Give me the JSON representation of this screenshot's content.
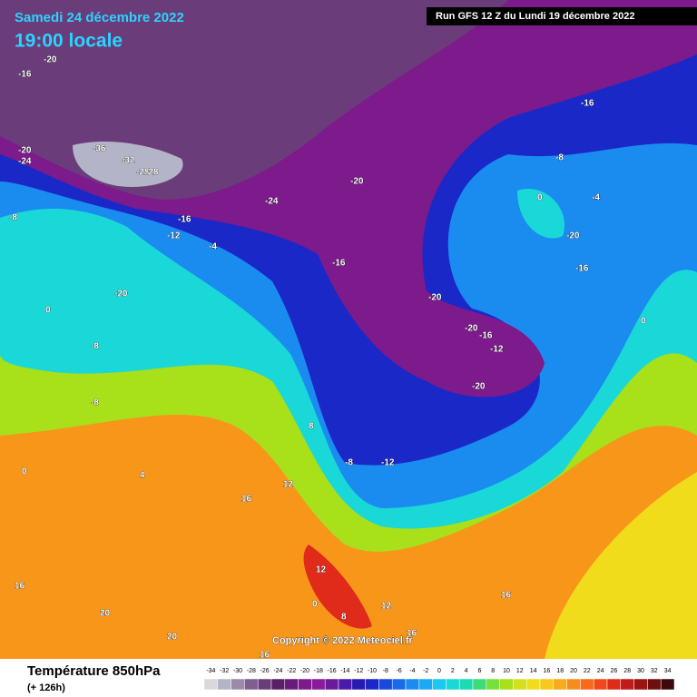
{
  "header": {
    "date": "Samedi 24 décembre 2022",
    "time": "19:00 locale",
    "run": "Run GFS 12 Z du Lundi 19 décembre 2022"
  },
  "copyright": "Copyright © 2022 Meteociel.fr",
  "footer": {
    "title": "Température 850hPa",
    "lead": "(+ 126h)"
  },
  "legend": {
    "labels": [
      -34,
      -32,
      -30,
      -28,
      -26,
      -24,
      -22,
      -20,
      -18,
      -16,
      -14,
      -12,
      -10,
      -8,
      -6,
      -4,
      -2,
      0,
      2,
      4,
      6,
      8,
      10,
      12,
      14,
      16,
      18,
      20,
      22,
      24,
      26,
      28,
      30,
      32,
      34
    ],
    "colors": [
      "#d9d9d9",
      "#b4b4c8",
      "#9b8aa8",
      "#7f5f8f",
      "#6b3c7a",
      "#5a1f66",
      "#6a1a7a",
      "#7d1a8c",
      "#8a1c9a",
      "#6a1a9a",
      "#4a1aa8",
      "#2a1ab4",
      "#1a28c8",
      "#1a48dc",
      "#1a6ae8",
      "#1a8cf0",
      "#1aaaf4",
      "#1ac8f0",
      "#1ad8d8",
      "#1adcb0",
      "#3cdc78",
      "#78e03c",
      "#a8e01a",
      "#d4e01a",
      "#f0dc1a",
      "#f8c81a",
      "#f8aa1a",
      "#f88c1a",
      "#f86a1a",
      "#f0481a",
      "#e02a1a",
      "#c01a1a",
      "#9a1414",
      "#6e0e0e",
      "#3c0a0a"
    ]
  },
  "contour_labels": [
    "-20",
    "-16",
    "-20",
    "-24",
    "-28",
    "-36",
    "-32",
    "-28",
    "-24",
    "-20",
    "-16",
    "-16",
    "-8",
    "-12",
    "-16",
    "-20",
    "-20",
    "-12",
    "-16",
    "-8",
    "0",
    "-4",
    "-8",
    "0",
    "-20",
    "-12",
    "-16",
    "-20",
    "-20",
    "-8",
    "-8",
    "0",
    "4",
    "0",
    "8",
    "12",
    "12",
    "16",
    "20",
    "20",
    "16",
    "16",
    "16",
    "8",
    "12",
    "16",
    "-4",
    "0"
  ]
}
